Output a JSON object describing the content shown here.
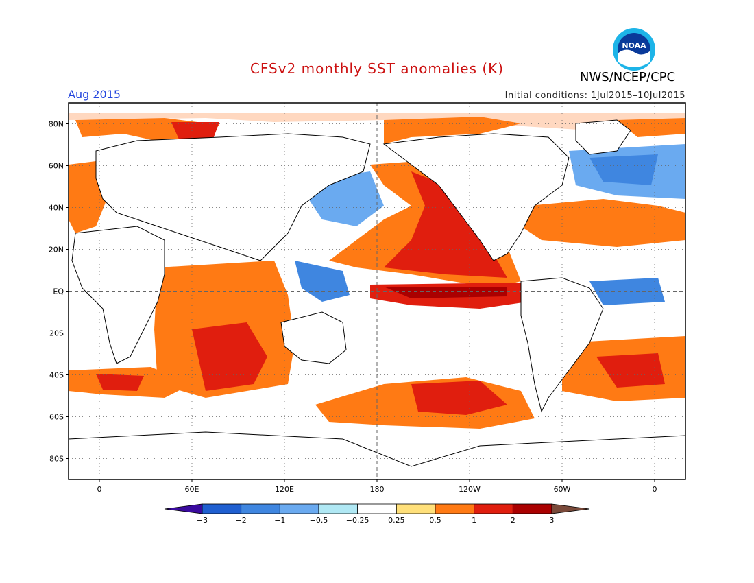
{
  "title": "CFSv2 monthly SST anomalies (K)",
  "agency": "NWS/NCEP/CPC",
  "valid_month": "Aug 2015",
  "initial_conditions": "Initial conditions: 1Jul2015–10Jul2015",
  "logo": {
    "icon": "noaa-logo-icon",
    "text": "NOAA"
  },
  "map": {
    "lat_labels": [
      "80N",
      "60N",
      "40N",
      "20N",
      "EQ",
      "20S",
      "40S",
      "60S",
      "80S"
    ],
    "lat_values": [
      80,
      60,
      40,
      20,
      0,
      -20,
      -40,
      -60,
      -80
    ],
    "lon_labels": [
      "0",
      "60E",
      "120E",
      "180",
      "120W",
      "60W",
      "0"
    ],
    "lon_values": [
      0,
      60,
      120,
      180,
      240,
      300,
      360
    ],
    "lon_range": [
      -20,
      380
    ],
    "lat_range": [
      -90,
      90
    ],
    "reference_lines": [
      "equator",
      "dateline"
    ]
  },
  "colorbar": {
    "levels": [
      "−3",
      "−2",
      "−1",
      "−0.5",
      "−0.25",
      "0.25",
      "0.5",
      "1",
      "2",
      "3"
    ],
    "colors": [
      "#3a0a9e",
      "#1f5fd0",
      "#3f86e0",
      "#6aaaf0",
      "#b0e8f4",
      "#ffffff",
      "#ffe07a",
      "#ff7a14",
      "#e01e0e",
      "#aa0000",
      "#7a4a3a"
    ]
  }
}
